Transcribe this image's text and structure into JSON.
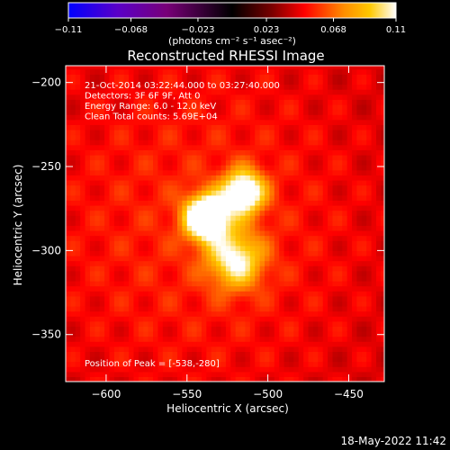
{
  "chart_data": {
    "type": "heatmap",
    "title": "Reconstructed RHESSI Image",
    "xlabel": "Heliocentric X (arcsec)",
    "ylabel": "Heliocentric Y (arcsec)",
    "xlim": [
      -625,
      -428
    ],
    "ylim": [
      -378,
      -190
    ],
    "x_ticks": [
      -600,
      -550,
      -500,
      -450
    ],
    "y_ticks": [
      -200,
      -250,
      -300,
      -350
    ],
    "x_tick_labels": [
      "−600",
      "−550",
      "−500",
      "−450"
    ],
    "y_tick_labels": [
      "−200",
      "−250",
      "−300",
      "−350"
    ],
    "colorbar": {
      "range": [
        -0.11,
        0.11
      ],
      "ticks": [
        -0.11,
        -0.068,
        -0.023,
        0.023,
        0.068,
        0.11
      ],
      "tick_labels": [
        "−0.11",
        "−0.068",
        "−0.023",
        "0.023",
        "0.068",
        "0.11"
      ],
      "unit_label": "(photons cm⁻² s⁻¹ asec⁻²)",
      "stops": [
        "#0000ff",
        "#5a00c8",
        "#780078",
        "#000000",
        "#780000",
        "#ff0000",
        "#ff8c00",
        "#ffc800",
        "#ffffff"
      ]
    },
    "sources": [
      {
        "x": -538,
        "y": -280,
        "amplitude": 0.11,
        "width": 9
      },
      {
        "x": -515,
        "y": -265,
        "amplitude": 0.085,
        "width": 9
      },
      {
        "x": -520,
        "y": -305,
        "amplitude": 0.06,
        "width": 12
      }
    ],
    "background_level": 0.04,
    "annotations": [
      "21-Oct-2014 03:22:44.000 to 03:27:40.000",
      "Detectors: 3F 6F 9F, Att 0",
      "Energy Range: 6.0 - 12.0 keV",
      "Clean    Total counts: 5.69E+04"
    ],
    "peak_label": "Position of Peak = [-538,-280]",
    "peak": [
      -538,
      -280
    ]
  },
  "footer": {
    "timestamp": "18-May-2022 11:42"
  }
}
